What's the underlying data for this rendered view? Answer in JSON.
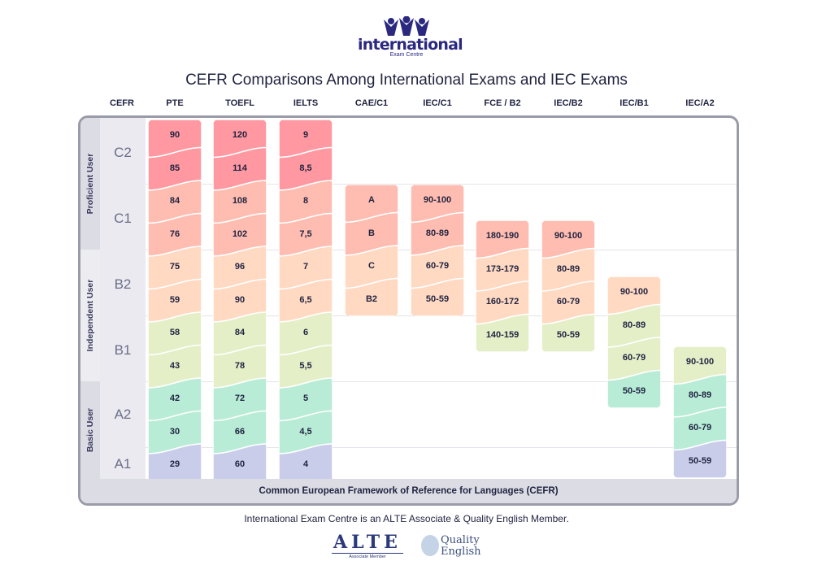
{
  "logo": {
    "name": "international",
    "subtitle": "Exam Centre"
  },
  "title": "CEFR Comparisons Among International Exams and IEC Exams",
  "cefr_header": "CEFR",
  "user_groups": [
    "Proficient User",
    "Independent User",
    "Basic User"
  ],
  "levels": [
    "C2",
    "C1",
    "B2",
    "B1",
    "A2",
    "A1"
  ],
  "footer": "Common European Framework of Reference for Languages (CEFR)",
  "bottom_text": "International Exam Centre is an ALTE Associate & Quality English Member.",
  "partners": {
    "alte": "ALTE",
    "alte_sub": "Associate Member",
    "qe_line1": "Quality",
    "qe_line2": "English"
  },
  "colors": {
    "C2": "#ff98a0",
    "C1": "#ffbcb0",
    "B2": "#ffd9c2",
    "B1": "#e4efc8",
    "A2": "#b8ecd6",
    "A1": "#c9cdea"
  },
  "chart_data": {
    "type": "table",
    "title": "CEFR Comparisons Among International Exams and IEC Exams",
    "rows": [
      "C2",
      "C1",
      "B2",
      "B1",
      "A2",
      "A1"
    ],
    "columns": [
      {
        "name": "PTE",
        "start": "C2",
        "levels": [
          "C2",
          "C2",
          "C1",
          "C1",
          "B2",
          "B2",
          "B1",
          "B1",
          "A2",
          "A2",
          "A1"
        ],
        "values": [
          "90",
          "85",
          "84",
          "76",
          "75",
          "59",
          "58",
          "43",
          "42",
          "30",
          "29"
        ]
      },
      {
        "name": "TOEFL",
        "start": "C2",
        "levels": [
          "C2",
          "C2",
          "C1",
          "C1",
          "B2",
          "B2",
          "B1",
          "B1",
          "A2",
          "A2",
          "A1"
        ],
        "values": [
          "120",
          "114",
          "108",
          "102",
          "96",
          "90",
          "84",
          "78",
          "72",
          "66",
          "60"
        ]
      },
      {
        "name": "IELTS",
        "start": "C2",
        "levels": [
          "C2",
          "C2",
          "C1",
          "C1",
          "B2",
          "B2",
          "B1",
          "B1",
          "A2",
          "A2",
          "A1"
        ],
        "values": [
          "9",
          "8,5",
          "8",
          "7,5",
          "7",
          "6,5",
          "6",
          "5,5",
          "5",
          "4,5",
          "4"
        ]
      },
      {
        "name": "CAE/C1",
        "start": "C1",
        "levels": [
          "C1",
          "C1",
          "B2",
          "B2"
        ],
        "values": [
          "A",
          "B",
          "C",
          "B2"
        ]
      },
      {
        "name": "IEC/C1",
        "start": "C1",
        "levels": [
          "C1",
          "C1",
          "B2",
          "B2"
        ],
        "values": [
          "90-100",
          "80-89",
          "60-79",
          "50-59"
        ]
      },
      {
        "name": "FCE / B2",
        "start": "B2",
        "levels": [
          "C1",
          "B2",
          "B2",
          "B1"
        ],
        "values": [
          "180-190",
          "173-179",
          "160-172",
          "140-159"
        ]
      },
      {
        "name": "IEC/B2",
        "start": "B2",
        "levels": [
          "C1",
          "B2",
          "B2",
          "B1"
        ],
        "values": [
          "90-100",
          "80-89",
          "60-79",
          "50-59"
        ]
      },
      {
        "name": "IEC/B1",
        "start": "B1",
        "levels": [
          "B2",
          "B1",
          "B1",
          "A2"
        ],
        "values": [
          "90-100",
          "80-89",
          "60-79",
          "50-59"
        ]
      },
      {
        "name": "IEC/A2",
        "start": "A2",
        "levels": [
          "B1",
          "A2",
          "A2",
          "A1"
        ],
        "values": [
          "90-100",
          "80-89",
          "60-79",
          "50-59"
        ]
      }
    ]
  }
}
